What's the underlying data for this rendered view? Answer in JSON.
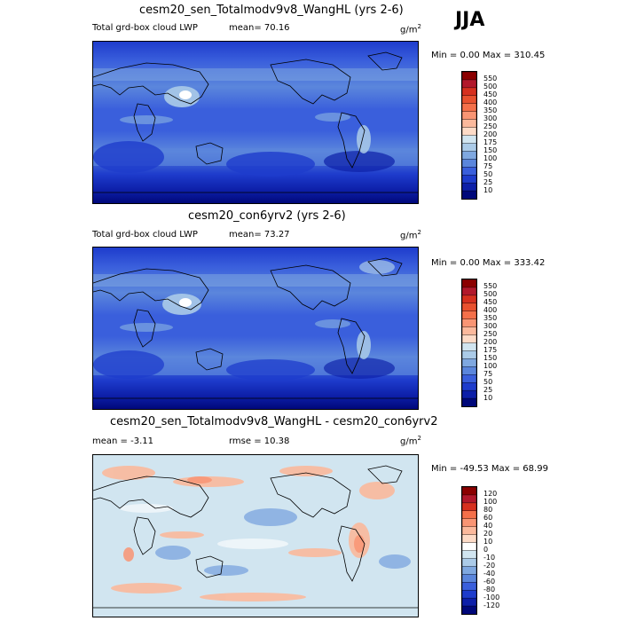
{
  "season": "JJA",
  "panels": [
    {
      "title": "cesm20_sen_Totalmodv9v8_WangHL (yrs 2-6)",
      "left_label": "Total grd-box cloud LWP",
      "mean_text": "mean=  70.16",
      "units_base": "g/m",
      "units_sup": "2",
      "minmax_text": "Min =   0.00 Max = 310.45",
      "colorbar_labels": [
        "550",
        "500",
        "450",
        "400",
        "350",
        "300",
        "250",
        "200",
        "175",
        "150",
        "100",
        "75",
        "50",
        "25",
        "10"
      ]
    },
    {
      "title": "cesm20_con6yrv2 (yrs 2-6)",
      "left_label": "Total grd-box cloud LWP",
      "mean_text": "mean=  73.27",
      "units_base": "g/m",
      "units_sup": "2",
      "minmax_text": "Min =   0.00 Max = 333.42",
      "colorbar_labels": [
        "550",
        "500",
        "450",
        "400",
        "350",
        "300",
        "250",
        "200",
        "175",
        "150",
        "100",
        "75",
        "50",
        "25",
        "10"
      ]
    },
    {
      "title": "cesm20_sen_Totalmodv9v8_WangHL - cesm20_con6yrv2",
      "left_label": "mean =  -3.11",
      "mean_text": "rmse =  10.38",
      "units_base": "g/m",
      "units_sup": "2",
      "minmax_text": "Min = -49.53 Max =  68.99",
      "colorbar_labels": [
        "120",
        "100",
        "80",
        "60",
        "40",
        "20",
        "10",
        "0",
        "-10",
        "-20",
        "-40",
        "-60",
        "-80",
        "-100",
        "-120"
      ]
    }
  ],
  "colors": {
    "abs_scale": [
      "#8b0000",
      "#b2182b",
      "#d6301f",
      "#e8512f",
      "#f4704a",
      "#f99574",
      "#fbb99c",
      "#fddbc7",
      "#d1e5f0",
      "#abcbe8",
      "#7fa8e0",
      "#5b86dc",
      "#3a5fdc",
      "#1e3ccc",
      "#0d1fa8",
      "#00087a"
    ],
    "diff_scale": [
      "#8b0000",
      "#b2182b",
      "#d6301f",
      "#f4704a",
      "#f99574",
      "#fbb99c",
      "#fddbc7",
      "#ffffff",
      "#d1e5f0",
      "#abcbe8",
      "#7fa8e0",
      "#5b86dc",
      "#3a5fdc",
      "#1e3ccc",
      "#0d1fa8",
      "#00087a"
    ]
  }
}
